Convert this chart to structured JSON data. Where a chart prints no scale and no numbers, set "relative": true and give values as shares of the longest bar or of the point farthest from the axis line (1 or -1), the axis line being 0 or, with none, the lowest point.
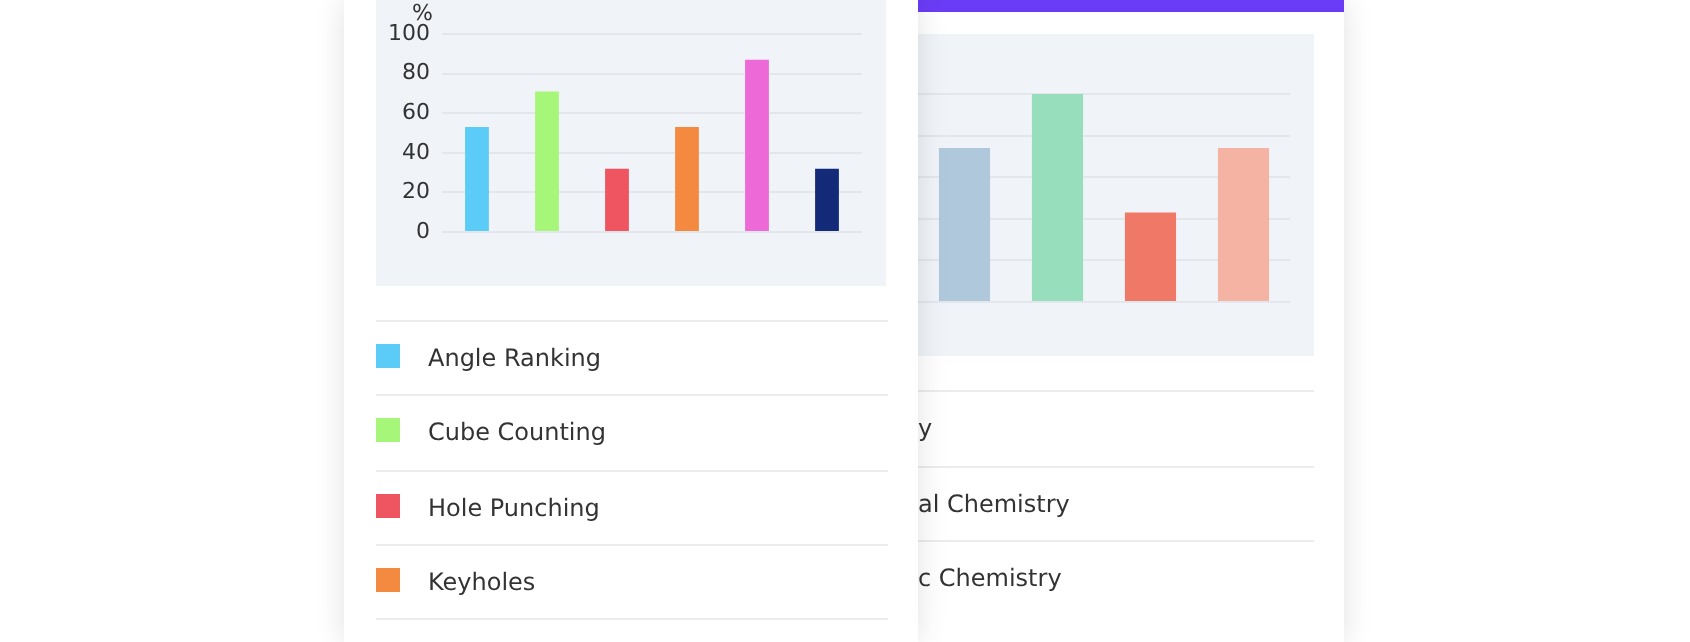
{
  "chart_data": [
    {
      "type": "bar",
      "ylabel": "%",
      "categories": [
        null
      ],
      "series": [
        {
          "name": "Angle Ranking",
          "color": "#5bcbf8",
          "values": [
            53
          ]
        },
        {
          "name": "Cube Counting",
          "color": "#a6f67a",
          "values": [
            71
          ]
        },
        {
          "name": "Hole Punching",
          "color": "#ef5561",
          "values": [
            32
          ]
        },
        {
          "name": "Keyholes",
          "color": "#f38a3f",
          "values": [
            53
          ]
        },
        {
          "color": "#ee69d8",
          "values": [
            87
          ]
        },
        {
          "color": "#132a78",
          "values": [
            32
          ]
        }
      ],
      "ylim": [
        0,
        100
      ],
      "yticks": [
        0,
        20,
        40,
        60,
        80,
        100
      ],
      "grid": "y",
      "legend": "bottom",
      "tick_labels": "y"
    },
    {
      "type": "bar",
      "relative": true,
      "categories": [
        null,
        null,
        null,
        null
      ],
      "values": [
        0.74,
        1,
        0.43,
        0.74
      ],
      "colors": [
        "#b0c8dc",
        "#97dfbc",
        "#ef7866",
        "#f4b3a3"
      ],
      "grid": "y",
      "tick_labels": false,
      "annotations": [
        "y",
        "al Chemistry",
        "c Chemistry"
      ]
    }
  ]
}
